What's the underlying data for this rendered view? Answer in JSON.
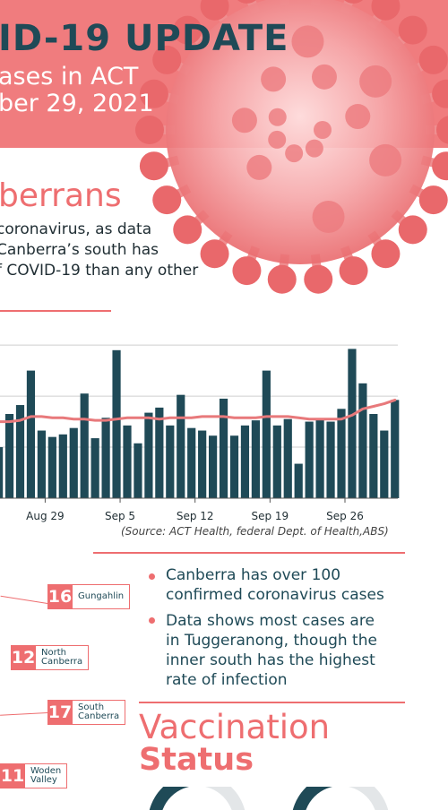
{
  "header": {
    "title": "ID-19 UPDATE",
    "subtitle_line1": "ases in ACT",
    "subtitle_line2": "ber 29, 2021"
  },
  "intro": {
    "heading": "berrans",
    "lines": [
      "coronavirus, as data",
      "Canberra’s south has",
      "f COVID-19 than any other"
    ]
  },
  "chart_data": {
    "type": "bar",
    "x_tick_labels": [
      "Aug 29",
      "Sep 5",
      "Sep 12",
      "Sep 19",
      "Sep 26"
    ],
    "values": [
      40,
      66,
      73,
      100,
      53,
      48,
      50,
      55,
      82,
      47,
      63,
      116,
      57,
      43,
      67,
      71,
      57,
      81,
      55,
      53,
      49,
      78,
      49,
      57,
      61,
      100,
      57,
      62,
      27,
      60,
      62,
      60,
      70,
      117,
      90,
      66,
      53,
      77
    ],
    "trend": [
      60,
      60,
      61,
      64,
      64,
      63,
      63,
      62,
      62,
      61,
      61,
      62,
      63,
      63,
      63,
      62,
      63,
      63,
      63,
      64,
      64,
      64,
      63,
      63,
      63,
      64,
      64,
      64,
      63,
      62,
      62,
      62,
      62,
      65,
      70,
      72,
      74,
      77
    ],
    "ylim": [
      0,
      125
    ],
    "grid": true,
    "colors": {
      "bar": "#1f4a57",
      "trend": "#e8797b"
    }
  },
  "source": "(Source: ACT Health, federal Dept. of Health,ABS)",
  "regions": [
    {
      "num": "16",
      "name_line1": "Gungahlin",
      "name_line2": ""
    },
    {
      "num": "12",
      "name_line1": "North",
      "name_line2": "Canberra"
    },
    {
      "num": "17",
      "name_line1": "South",
      "name_line2": "Canberra"
    },
    {
      "num": "11",
      "name_line1": "Woden",
      "name_line2": "Valley"
    }
  ],
  "bullets": [
    {
      "lines": [
        "Canberra has over 100",
        "confirmed coronavirus cases"
      ]
    },
    {
      "lines": [
        "Data shows most cases are",
        "in Tuggeranong, though the",
        "inner south has the highest",
        "rate of infection"
      ]
    }
  ],
  "vaccination": {
    "line1": "Vaccination",
    "line2": "Status"
  },
  "colors": {
    "accent": "#ee6e70",
    "dark": "#1f4a57",
    "header": "#f07c7e"
  }
}
